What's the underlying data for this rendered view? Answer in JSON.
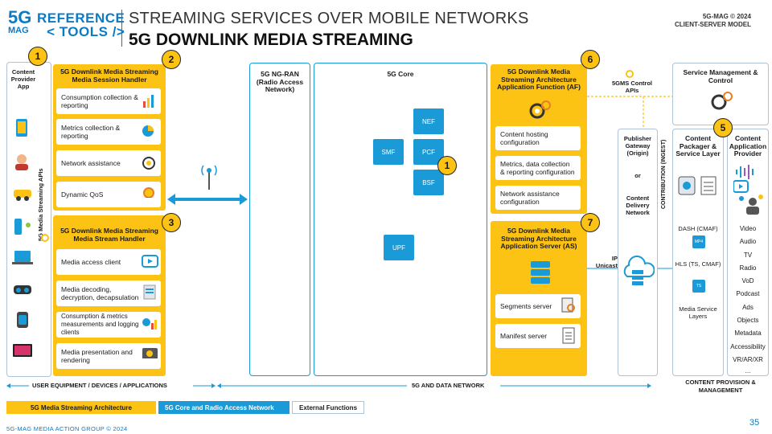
{
  "header": {
    "logo_5g": "5G",
    "logo_mag": "MAG",
    "logo_line1": "REFERENCE",
    "logo_line2": "< TOOLS />",
    "title1": "STREAMING SERVICES OVER MOBILE NETWORKS",
    "title2": "5G DOWNLINK MEDIA STREAMING",
    "copyright": "5G-MAG © 2024",
    "model": "CLIENT-SERVER MODEL"
  },
  "ue": {
    "content_provider_app": "Content Provider App",
    "apis_label": "5G Media Streaming APIs",
    "session_handler_title": "5G Downlink Media Streaming Media Session Handler",
    "session_items": [
      "Consumption collection & reporting",
      "Metrics collection & reporting",
      "Network assistance",
      "Dynamic QoS"
    ],
    "stream_handler_title": "5G Downlink Media Streaming Media Stream Handler",
    "stream_items": [
      "Media access client",
      "Media decoding, decryption, decapsulation",
      "Consumption & metrics measurements and logging clients",
      "Media presentation and rendering"
    ],
    "section_label": "USER EQUIPMENT / DEVICES / APPLICATIONS"
  },
  "ran": {
    "title": "5G NG-RAN (Radio Access Network)"
  },
  "core": {
    "title": "5G Core",
    "nodes": [
      "NEF",
      "SMF",
      "PCF",
      "BSF",
      "UPF"
    ]
  },
  "af": {
    "title": "5G Downlink Media Streaming Architecture Application Function (AF)",
    "items": [
      "Content hosting configuration",
      "Metrics, data collection & reporting configuration",
      "Network assistance configuration"
    ]
  },
  "as": {
    "title": "5G Downlink Media Streaming Architecture Application Server (AS)",
    "items": [
      "Segments server",
      "Manifest server"
    ]
  },
  "network_label": "5G AND DATA NETWORK",
  "control_apis": "5GMS Control APIs",
  "ip_unicast": "IP Unicast",
  "gateway": {
    "line1": "Publisher Gateway (Origin)",
    "or": "or",
    "line2": "Content Delivery Network",
    "ingest": "CONTRIBUTION (INGEST)"
  },
  "service_mgmt": "Service Management & Control",
  "packager": {
    "title": "Content Packager & Service Layer",
    "dash": "DASH (CMAF)",
    "mp4": "MP4",
    "hls": "HLS (TS, CMAF)",
    "ts": "TS",
    "media_layers": "Media Service Layers"
  },
  "provider": {
    "title": "Content Application Provider",
    "items": [
      "Video",
      "Audio",
      "TV",
      "Radio",
      "VoD",
      "Podcast",
      "Ads",
      "Objects",
      "Metadata",
      "Accessibility",
      "VR/AR/XR",
      "..."
    ]
  },
  "provision_label": "CONTENT PROVISION & MANAGEMENT",
  "badges": [
    "1",
    "2",
    "3",
    "1",
    "6",
    "7",
    "5"
  ],
  "legend": [
    "5G Media Streaming Architecture",
    "5G Core and Radio Access Network",
    "External Functions"
  ],
  "footer": "5G-MAG MEDIA ACTION GROUP © 2024",
  "page_number": "35",
  "colors": {
    "yellow": "#fcc214",
    "blue": "#1a9ad6",
    "border": "#b0c4d8"
  }
}
